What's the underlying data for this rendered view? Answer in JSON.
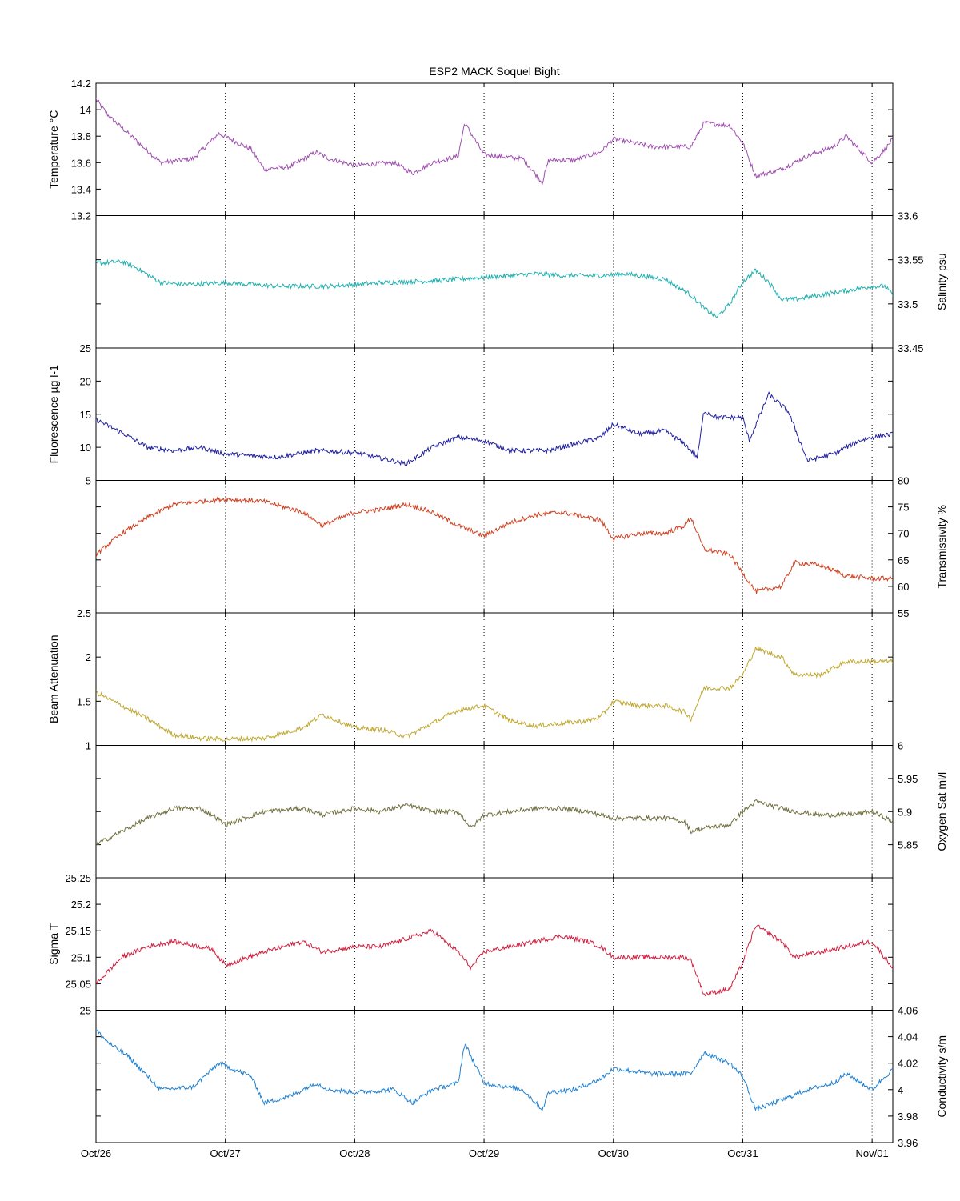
{
  "chart_data": {
    "type": "line",
    "title": "ESP2 MACK  Soquel Bight",
    "x_ticks": [
      "Oct/26",
      "Oct/27",
      "Oct/28",
      "Oct/29",
      "Oct/30",
      "Oct/31",
      "Nov/01"
    ],
    "x_tick_values": [
      0,
      1,
      2,
      3,
      4,
      5,
      6
    ],
    "xlim": [
      0,
      6.16
    ],
    "grid": "vertical dotted at day ticks",
    "panels": [
      {
        "name": "Temperature °C",
        "side": "left",
        "color": "#a050b0",
        "ylim": [
          13.2,
          14.2
        ],
        "ticks": [
          "13.2",
          "13.4",
          "13.6",
          "13.8",
          "14",
          "14.2"
        ],
        "tick_values": [
          13.2,
          13.4,
          13.6,
          13.8,
          14.0,
          14.2
        ],
        "x": [
          0,
          0.1,
          0.25,
          0.5,
          0.75,
          0.95,
          1.2,
          1.3,
          1.5,
          1.7,
          1.8,
          2.0,
          2.3,
          2.45,
          2.6,
          2.8,
          2.85,
          3.0,
          3.3,
          3.45,
          3.5,
          3.7,
          3.9,
          4.0,
          4.3,
          4.6,
          4.7,
          4.9,
          5.0,
          5.1,
          5.3,
          5.5,
          5.7,
          5.8,
          6.0,
          6.1,
          6.16
        ],
        "values": [
          14.08,
          13.95,
          13.82,
          13.6,
          13.63,
          13.82,
          13.7,
          13.55,
          13.57,
          13.68,
          13.63,
          13.58,
          13.6,
          13.52,
          13.6,
          13.65,
          13.9,
          13.66,
          13.63,
          13.45,
          13.62,
          13.62,
          13.68,
          13.78,
          13.72,
          13.72,
          13.9,
          13.88,
          13.75,
          13.5,
          13.55,
          13.65,
          13.72,
          13.8,
          13.6,
          13.7,
          13.78
        ]
      },
      {
        "name": "Salinity psu",
        "side": "right",
        "color": "#20b0b0",
        "ylim": [
          33.45,
          33.6
        ],
        "ticks": [
          "33.45",
          "33.5",
          "33.55",
          "33.6"
        ],
        "tick_values": [
          33.45,
          33.5,
          33.55,
          33.6
        ],
        "x": [
          0,
          0.2,
          0.3,
          0.5,
          0.7,
          1.0,
          1.4,
          1.8,
          2.2,
          2.6,
          3.0,
          3.4,
          3.6,
          3.9,
          4.1,
          4.4,
          4.6,
          4.7,
          4.8,
          4.9,
          5.0,
          5.1,
          5.2,
          5.3,
          5.4,
          5.6,
          5.8,
          6.0,
          6.1,
          6.16
        ],
        "values": [
          33.546,
          33.548,
          33.542,
          33.524,
          33.522,
          33.524,
          33.52,
          33.52,
          33.524,
          33.526,
          33.53,
          33.534,
          33.532,
          33.532,
          33.534,
          33.528,
          33.51,
          33.495,
          33.485,
          33.5,
          33.525,
          33.538,
          33.525,
          33.505,
          33.505,
          33.51,
          33.515,
          33.52,
          33.52,
          33.51
        ]
      },
      {
        "name": "Fluorescence µg l-1",
        "side": "left",
        "color": "#2020a0",
        "ylim": [
          5,
          25
        ],
        "ticks": [
          "5",
          "10",
          "15",
          "20",
          "25"
        ],
        "tick_values": [
          5,
          10,
          15,
          20,
          25
        ],
        "x": [
          0,
          0.2,
          0.4,
          0.6,
          0.8,
          1.0,
          1.4,
          1.7,
          2.0,
          2.4,
          2.6,
          2.8,
          3.0,
          3.2,
          3.5,
          3.8,
          3.9,
          4.0,
          4.2,
          4.4,
          4.55,
          4.65,
          4.7,
          4.8,
          5.0,
          5.05,
          5.2,
          5.35,
          5.5,
          5.7,
          5.9,
          6.0,
          6.16
        ],
        "values": [
          14.2,
          12.2,
          10.0,
          9.5,
          10.0,
          9.0,
          8.5,
          9.5,
          9.2,
          7.5,
          10.0,
          11.5,
          11.0,
          9.5,
          9.5,
          11.0,
          11.5,
          13.5,
          12.0,
          12.5,
          10.5,
          8.5,
          15.5,
          14.5,
          14.5,
          11.0,
          18.0,
          15.5,
          8.0,
          9.0,
          11.0,
          11.5,
          12.0
        ]
      },
      {
        "name": "Transmissivity %",
        "side": "right",
        "color": "#d04020",
        "ylim": [
          55,
          80
        ],
        "ticks": [
          "55",
          "60",
          "65",
          "70",
          "75",
          "80"
        ],
        "tick_values": [
          55,
          60,
          65,
          70,
          75,
          80
        ],
        "x": [
          0,
          0.2,
          0.4,
          0.6,
          0.8,
          1.0,
          1.3,
          1.6,
          1.75,
          2.0,
          2.2,
          2.4,
          2.6,
          2.8,
          3.0,
          3.2,
          3.4,
          3.6,
          3.8,
          3.9,
          4.0,
          4.2,
          4.4,
          4.55,
          4.6,
          4.7,
          4.9,
          5.0,
          5.1,
          5.3,
          5.4,
          5.6,
          5.8,
          6.0,
          6.16
        ],
        "values": [
          66,
          70,
          73,
          75.5,
          76,
          76.5,
          76,
          74,
          71.5,
          74,
          74.5,
          75.5,
          74,
          71.5,
          69.5,
          72,
          73.5,
          74,
          73,
          72.5,
          69,
          70,
          70,
          71.5,
          73,
          67,
          66,
          62.5,
          59,
          60,
          64.5,
          64,
          62,
          61.5,
          61.5
        ]
      },
      {
        "name": "Beam Attenuation",
        "side": "left",
        "color": "#c0a830",
        "ylim": [
          1,
          2.5
        ],
        "ticks": [
          "1",
          "1.5",
          "2",
          "2.5"
        ],
        "tick_values": [
          1,
          1.5,
          2,
          2.5
        ],
        "x": [
          0,
          0.2,
          0.4,
          0.6,
          0.8,
          1.0,
          1.3,
          1.6,
          1.75,
          2.0,
          2.2,
          2.4,
          2.6,
          2.8,
          3.0,
          3.2,
          3.4,
          3.6,
          3.8,
          3.9,
          4.0,
          4.2,
          4.4,
          4.55,
          4.6,
          4.7,
          4.9,
          5.0,
          5.1,
          5.3,
          5.4,
          5.6,
          5.8,
          6.0,
          6.16
        ],
        "values": [
          1.6,
          1.45,
          1.3,
          1.12,
          1.08,
          1.07,
          1.08,
          1.2,
          1.35,
          1.2,
          1.18,
          1.1,
          1.25,
          1.4,
          1.45,
          1.28,
          1.22,
          1.25,
          1.28,
          1.32,
          1.5,
          1.45,
          1.45,
          1.38,
          1.3,
          1.65,
          1.65,
          1.8,
          2.1,
          2.0,
          1.8,
          1.8,
          1.95,
          1.95,
          1.95
        ]
      },
      {
        "name": "Oxygen Sat ml/l",
        "side": "right",
        "color": "#707040",
        "ylim": [
          5.8,
          6.0
        ],
        "ticks": [
          "5.85",
          "5.9",
          "5.95",
          "6"
        ],
        "tick_values": [
          5.85,
          5.9,
          5.95,
          6.0
        ],
        "x": [
          0,
          0.2,
          0.4,
          0.6,
          0.8,
          0.9,
          1.0,
          1.3,
          1.6,
          1.75,
          2.0,
          2.2,
          2.4,
          2.6,
          2.8,
          2.9,
          3.0,
          3.2,
          3.4,
          3.6,
          3.8,
          3.9,
          4.0,
          4.2,
          4.4,
          4.55,
          4.6,
          4.7,
          4.9,
          5.0,
          5.1,
          5.3,
          5.4,
          5.6,
          5.8,
          6.0,
          6.16
        ],
        "values": [
          5.85,
          5.87,
          5.89,
          5.905,
          5.905,
          5.895,
          5.88,
          5.9,
          5.905,
          5.895,
          5.905,
          5.9,
          5.91,
          5.9,
          5.9,
          5.875,
          5.895,
          5.9,
          5.905,
          5.905,
          5.9,
          5.895,
          5.89,
          5.89,
          5.89,
          5.885,
          5.87,
          5.875,
          5.88,
          5.9,
          5.915,
          5.905,
          5.9,
          5.895,
          5.895,
          5.9,
          5.885
        ]
      },
      {
        "name": "Sigma T",
        "side": "left",
        "color": "#d02040",
        "ylim": [
          25,
          25.25
        ],
        "ticks": [
          "25",
          "25.05",
          "25.1",
          "25.15",
          "25.2",
          "25.25"
        ],
        "tick_values": [
          25,
          25.05,
          25.1,
          25.15,
          25.2,
          25.25
        ],
        "x": [
          0,
          0.2,
          0.4,
          0.6,
          0.8,
          0.9,
          1.0,
          1.3,
          1.6,
          1.75,
          2.0,
          2.2,
          2.4,
          2.6,
          2.8,
          2.9,
          3.0,
          3.2,
          3.4,
          3.6,
          3.8,
          3.9,
          4.0,
          4.2,
          4.4,
          4.55,
          4.6,
          4.7,
          4.9,
          5.0,
          5.1,
          5.3,
          5.4,
          5.6,
          5.8,
          6.0,
          6.16
        ],
        "values": [
          25.05,
          25.1,
          25.12,
          25.13,
          25.12,
          25.115,
          25.085,
          25.11,
          25.13,
          25.11,
          25.12,
          25.12,
          25.135,
          25.15,
          25.11,
          25.08,
          25.11,
          25.12,
          25.13,
          25.14,
          25.13,
          25.12,
          25.1,
          25.1,
          25.1,
          25.1,
          25.095,
          25.03,
          25.04,
          25.09,
          25.16,
          25.13,
          25.1,
          25.11,
          25.12,
          25.13,
          25.08
        ]
      },
      {
        "name": "Conductivity s/m",
        "side": "right",
        "color": "#2080d0",
        "ylim": [
          3.96,
          4.06
        ],
        "ticks": [
          "3.96",
          "3.98",
          "4",
          "4.02",
          "4.04",
          "4.06"
        ],
        "tick_values": [
          3.96,
          3.98,
          4.0,
          4.02,
          4.04,
          4.06
        ],
        "x": [
          0,
          0.1,
          0.25,
          0.5,
          0.75,
          0.95,
          1.2,
          1.3,
          1.5,
          1.7,
          1.8,
          2.0,
          2.3,
          2.45,
          2.6,
          2.8,
          2.85,
          3.0,
          3.3,
          3.45,
          3.5,
          3.7,
          3.9,
          4.0,
          4.3,
          4.6,
          4.7,
          4.9,
          5.0,
          5.1,
          5.3,
          5.5,
          5.7,
          5.8,
          6.0,
          6.1,
          6.16
        ],
        "values": [
          4.045,
          4.035,
          4.025,
          4.0,
          4.002,
          4.02,
          4.01,
          3.99,
          3.995,
          4.005,
          4.0,
          3.998,
          4.0,
          3.99,
          4.0,
          4.005,
          4.035,
          4.005,
          4.0,
          3.985,
          3.998,
          4.0,
          4.008,
          4.016,
          4.012,
          4.012,
          4.028,
          4.02,
          4.01,
          3.985,
          3.992,
          4.0,
          4.005,
          4.012,
          4.0,
          4.01,
          4.015
        ]
      }
    ]
  }
}
